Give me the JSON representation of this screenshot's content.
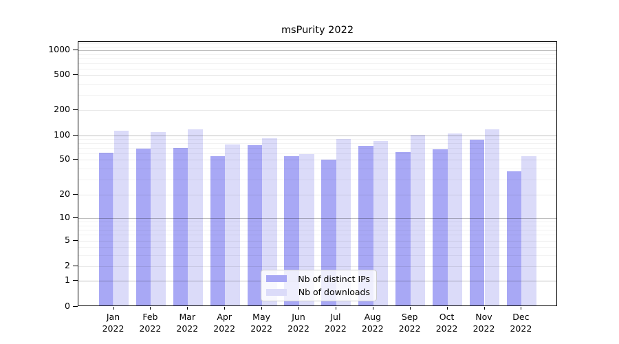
{
  "chart_data": {
    "type": "bar",
    "title": "msPurity 2022",
    "scale": "symlog-like (0 then log ticks 1,2,5,10,20,50,100,200,500,1000)",
    "grid": true,
    "legend_position": "lower center inside plot",
    "categories": [
      "Jan",
      "Feb",
      "Mar",
      "Apr",
      "May",
      "Jun",
      "Jul",
      "Aug",
      "Sep",
      "Oct",
      "Nov",
      "Dec"
    ],
    "x_tick_second_line": "2022",
    "y_ticks": [
      0,
      1,
      2,
      5,
      10,
      20,
      50,
      100,
      200,
      500,
      1000
    ],
    "ylim": [
      0,
      1250
    ],
    "series": [
      {
        "name": "Nb of distinct IPs",
        "color": "#a8a8f5",
        "values": [
          59,
          66,
          67,
          53,
          73,
          53,
          49,
          72,
          60,
          65,
          85,
          36
        ]
      },
      {
        "name": "Nb of downloads",
        "color": "#dbdbf9",
        "values": [
          110,
          105,
          114,
          74,
          88,
          57,
          87,
          82,
          97,
          101,
          113,
          53
        ]
      }
    ]
  },
  "colors": {
    "background": "#ffffff",
    "spine": "#000000",
    "grid_major": "rgba(0,0,0,0.26)",
    "grid_labeled": "rgba(0,0,0,0.085)",
    "grid_minor": "rgba(0,0,0,0.05)",
    "text": "#000000",
    "legend_border": "#cccccc"
  }
}
